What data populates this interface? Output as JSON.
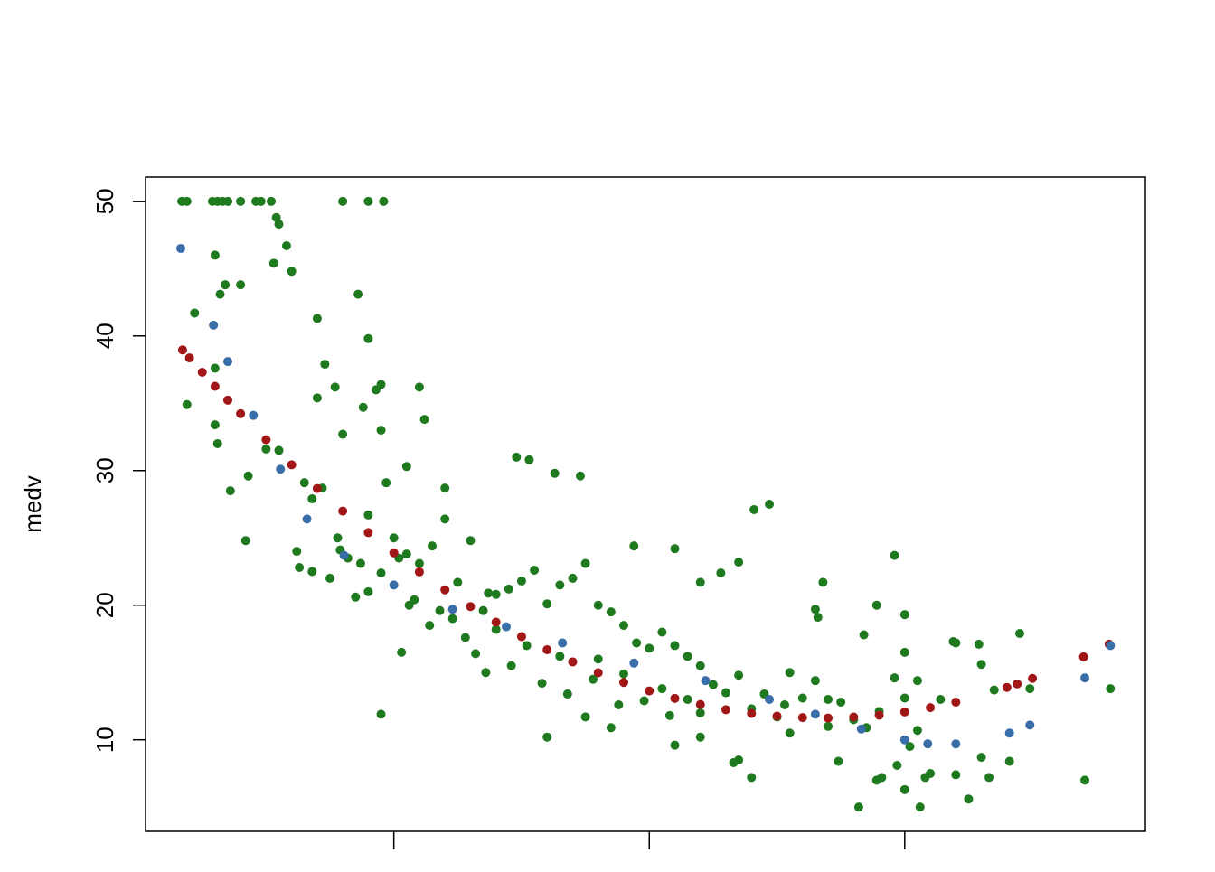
{
  "chart_data": {
    "type": "scatter",
    "ylabel": "medv",
    "xlim": [
      0.28,
      39.42
    ],
    "ylim": [
      3.2,
      51.8
    ],
    "xticks": [
      10,
      20,
      30
    ],
    "yticks": [
      10,
      20,
      30,
      40,
      50
    ],
    "series": [
      {
        "color": "#1f7a1f",
        "x": [
          1.7,
          1.9,
          2.9,
          3.1,
          3.3,
          3.5,
          4.0,
          4.6,
          4.8,
          5.2,
          8.0,
          9.0,
          9.6,
          5.4,
          5.5,
          5.8,
          5.3,
          3.0,
          3.4,
          3.2,
          4.0,
          6.0,
          7.0,
          2.2,
          3.0,
          3.0,
          3.1,
          1.9,
          3.6,
          4.2,
          4.3,
          5.0,
          5.5,
          6.5,
          6.8,
          7.2,
          6.3,
          6.8,
          7.5,
          7.9,
          8.5,
          8.7,
          9.0,
          9.5,
          10.0,
          10.5,
          11.0,
          11.5,
          12.0,
          12.5,
          13.0,
          13.5,
          14.0,
          14.0,
          8.6,
          9.0,
          9.3,
          9.5,
          7.3,
          7.7,
          7.0,
          11.0,
          11.2,
          8.8,
          8.0,
          9.5,
          10.5,
          9.7,
          12.0,
          10.2,
          10.8,
          11.8,
          12.3,
          13.7,
          14.5,
          15.0,
          15.5,
          16.0,
          16.5,
          17.0,
          17.5,
          18.0,
          18.5,
          19.0,
          19.5,
          20.0,
          20.5,
          21.0,
          21.5,
          22.0,
          22.5,
          23.0,
          23.5,
          24.0,
          24.5,
          25.0,
          25.5,
          26.0,
          26.5,
          27.0,
          27.5,
          28.0,
          28.5,
          29.0,
          15.3,
          16.3,
          17.3,
          14.8,
          24.1,
          24.7,
          19.4,
          21.0,
          22.0,
          22.8,
          23.5,
          26.5,
          26.6,
          26.8,
          28.9,
          30.0,
          31.9,
          32.9,
          28.4,
          29.6,
          30.0,
          30.5,
          29.6,
          32.0,
          34.1,
          34.5,
          34.9,
          37.05,
          38.05,
          30.6,
          30.0,
          30.8,
          29.1,
          29.7,
          23.3,
          23.5,
          24.0,
          21.0,
          18.5,
          16.0,
          17.5,
          22.0,
          25.5,
          27.4,
          28.2,
          28.9,
          30.2,
          31.0,
          32.5,
          33.0,
          33.3,
          9.5,
          10.3,
          13.6,
          15.2,
          16.5,
          17.8,
          18.0,
          19.0,
          20.5,
          21.5,
          22.0,
          25.3,
          27.0,
          30.0,
          30.5,
          31.4,
          33.0,
          33.5,
          32.0,
          6.2,
          7.8,
          8.2,
          9.0,
          10.6,
          11.4,
          12.8,
          13.2,
          14.6,
          15.8,
          16.8,
          18.8,
          19.8,
          20.8
        ],
        "values": [
          50,
          50,
          50,
          50,
          50,
          50,
          50,
          50,
          50,
          50,
          50,
          50,
          50,
          48.8,
          48.3,
          46.7,
          45.4,
          46.0,
          43.8,
          43.1,
          43.8,
          44.8,
          41.3,
          41.7,
          37.6,
          33.4,
          32.0,
          34.9,
          28.5,
          24.8,
          29.6,
          31.6,
          31.5,
          29.1,
          27.9,
          28.7,
          22.8,
          22.5,
          22.0,
          24.1,
          20.6,
          23.1,
          26.7,
          22.4,
          25.0,
          23.8,
          23.1,
          24.4,
          26.4,
          21.7,
          24.8,
          19.6,
          20.8,
          18.2,
          43.1,
          39.8,
          36.0,
          36.4,
          37.9,
          36.2,
          35.4,
          36.2,
          33.8,
          34.7,
          32.7,
          33.0,
          30.3,
          29.1,
          28.7,
          23.5,
          20.4,
          19.6,
          19.0,
          20.9,
          21.2,
          21.8,
          22.6,
          20.1,
          21.5,
          22.0,
          23.1,
          20.0,
          19.5,
          18.5,
          17.2,
          16.8,
          18.0,
          17.0,
          16.2,
          15.5,
          14.1,
          13.5,
          14.8,
          12.3,
          13.4,
          11.7,
          15.0,
          13.1,
          14.4,
          13.0,
          12.8,
          11.5,
          10.9,
          12.1,
          30.8,
          29.8,
          29.6,
          31.0,
          27.1,
          27.5,
          24.4,
          24.2,
          21.7,
          22.4,
          23.2,
          19.7,
          19.1,
          21.7,
          20.0,
          19.3,
          17.3,
          17.1,
          17.8,
          23.7,
          16.5,
          14.4,
          14.6,
          7.4,
          8.4,
          17.9,
          13.8,
          7.0,
          13.8,
          5.0,
          6.3,
          7.2,
          7.2,
          8.1,
          8.3,
          8.5,
          7.2,
          9.6,
          10.9,
          10.2,
          11.7,
          10.2,
          10.5,
          8.4,
          5.0,
          7.0,
          9.5,
          7.5,
          5.6,
          8.7,
          7.2,
          11.9,
          16.5,
          15.0,
          17.0,
          16.2,
          14.5,
          16.0,
          14.9,
          13.8,
          13.0,
          12.0,
          12.6,
          11.0,
          13.1,
          10.7,
          13.0,
          15.6,
          13.7,
          17.2,
          24.0,
          25.0,
          23.5,
          21.0,
          20.0,
          18.5,
          17.6,
          16.4,
          15.5,
          14.2,
          13.4,
          12.6,
          12.9,
          11.8
        ]
      },
      {
        "color": "#a11616",
        "x": [
          1.73,
          2,
          2.5,
          3,
          3.5,
          4,
          5,
          6,
          7,
          8,
          9,
          10,
          11,
          12,
          13,
          14,
          15,
          16,
          17,
          18,
          19,
          20,
          21,
          22,
          23,
          24,
          25,
          26,
          27,
          28,
          29,
          30,
          31,
          32,
          34,
          34.4,
          35,
          37,
          38
        ],
        "values": [
          38.96,
          38.37,
          37.3,
          36.26,
          35.23,
          34.23,
          32.29,
          30.43,
          28.67,
          26.99,
          25.39,
          23.89,
          22.47,
          21.14,
          19.9,
          18.74,
          17.67,
          16.69,
          15.79,
          14.98,
          14.26,
          13.63,
          13.08,
          12.62,
          12.24,
          11.96,
          11.76,
          11.65,
          11.62,
          11.69,
          11.83,
          12.07,
          12.39,
          12.8,
          13.89,
          14.15,
          14.56,
          16.16,
          17.1
        ]
      },
      {
        "color": "#3a6ea8",
        "x": [
          1.66,
          2.94,
          3.5,
          4.5,
          5.56,
          6.6,
          8.05,
          10.0,
          12.3,
          14.4,
          16.6,
          19.4,
          22.2,
          24.7,
          26.5,
          28.3,
          30.0,
          30.9,
          32.0,
          34.1,
          34.9,
          37.05,
          38.05
        ],
        "values": [
          46.5,
          40.8,
          38.1,
          34.1,
          30.1,
          26.4,
          23.7,
          21.5,
          19.7,
          18.4,
          17.2,
          15.7,
          14.4,
          13.0,
          11.9,
          10.8,
          10.0,
          9.7,
          9.7,
          10.5,
          11.1,
          14.6,
          17.0
        ]
      }
    ]
  }
}
